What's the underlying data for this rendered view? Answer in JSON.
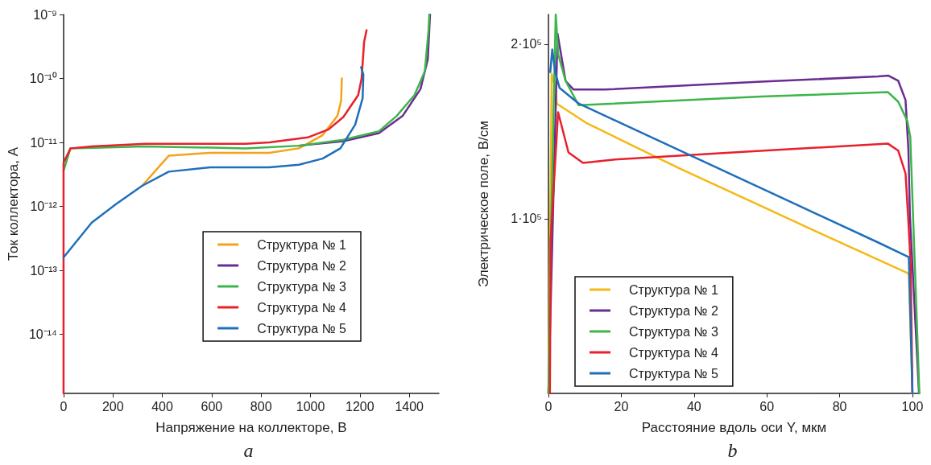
{
  "chart_data": [
    {
      "type": "line",
      "xlabel": "Напряжение на коллекторе, В",
      "ylabel": "Ток коллектора, А",
      "annotations": [
        "a"
      ],
      "log": "y",
      "xlim": [
        0,
        1520
      ],
      "xticks": [
        0,
        200,
        400,
        600,
        800,
        1000,
        1200,
        1400
      ],
      "ylim": [
        1.2e-15,
        1e-09
      ],
      "yticks": [
        {
          "value": 1e-14,
          "label": "10⁻¹⁴"
        },
        {
          "value": 1e-13,
          "label": "10⁻¹³"
        },
        {
          "value": 1e-12,
          "label": "10⁻¹²"
        },
        {
          "value": 1e-11,
          "label": "10⁻¹¹"
        },
        {
          "value": 1e-10,
          "label": "10⁻¹⁰"
        },
        {
          "value": 1e-09,
          "label": "10⁻⁹"
        }
      ],
      "legend": "right",
      "grid": false,
      "marker": "none",
      "line_style": "solid",
      "series": [
        {
          "name": "Структура № 1",
          "color": "#f7a11a",
          "x": [
            318,
            426,
            594,
            833,
            953,
            1049,
            1109,
            1124,
            1127
          ],
          "values": [
            2.1e-12,
            6.2e-12,
            6.9e-12,
            6.9e-12,
            8.1e-12,
            1.3e-11,
            2.6e-11,
            4.5e-11,
            1e-10
          ]
        },
        {
          "name": "Структура № 2",
          "color": "#6a2c91",
          "x": [
            953,
            1133,
            1277,
            1373,
            1445,
            1475,
            1484
          ],
          "values": [
            8.9e-12,
            1.05e-11,
            1.4e-11,
            2.6e-11,
            6.8e-11,
            2e-10,
            1e-09
          ]
        },
        {
          "name": "Структура № 3",
          "color": "#3cb54a",
          "x": [
            0,
            28,
            330,
            737,
            953,
            1133,
            1277,
            1349,
            1421,
            1463,
            1478,
            1481
          ],
          "values": [
            3.6e-12,
            8.1e-12,
            8.7e-12,
            8.1e-12,
            8.9e-12,
            1.1e-11,
            1.5e-11,
            2.6e-11,
            5.5e-11,
            1.3e-10,
            5.7e-10,
            1e-09
          ]
        },
        {
          "name": "Структура № 4",
          "color": "#e8202a",
          "x": [
            0,
            0,
            28,
            114,
            330,
            737,
            833,
            989,
            1073,
            1133,
            1193,
            1207,
            1217,
            1227
          ],
          "values": [
            1.2e-15,
            4.8e-12,
            8.1e-12,
            8.7e-12,
            9.5e-12,
            9.5e-12,
            1e-11,
            1.2e-11,
            1.6e-11,
            2.5e-11,
            5.5e-11,
            1e-10,
            3.7e-10,
            5.7e-10
          ]
        },
        {
          "name": "Структура № 5",
          "color": "#1f6fba",
          "x": [
            0,
            114,
            210,
            318,
            426,
            594,
            833,
            953,
            1049,
            1121,
            1181,
            1211,
            1214,
            1205
          ],
          "values": [
            1.6e-13,
            5.6e-13,
            1.07e-12,
            2.1e-12,
            3.5e-12,
            4.1e-12,
            4.1e-12,
            4.5e-12,
            5.6e-12,
            8.1e-12,
            1.9e-11,
            4.9e-11,
            1.15e-10,
            1.5e-10
          ]
        }
      ]
    },
    {
      "type": "line",
      "xlabel": "Расстояние вдоль оси Y, мкм",
      "ylabel": "Электрическое поле, В/см",
      "annotations": [
        "b"
      ],
      "xlim": [
        0,
        102
      ],
      "xticks": [
        0,
        20,
        40,
        60,
        80,
        100
      ],
      "ylim": [
        0,
        217000
      ],
      "yticks": [
        {
          "value": 100000,
          "label": "1·10⁵"
        },
        {
          "value": 200000,
          "label": "2·10⁵"
        }
      ],
      "legend": "bottom left",
      "grid": false,
      "marker": "none",
      "line_style": "solid",
      "series": [
        {
          "name": "Структура № 1",
          "color": "#f5b815",
          "x": [
            0,
            0.9,
            2.1,
            2.25,
            10.3,
            19.1,
            35.9,
            80.9,
            99.0,
            100
          ],
          "values": [
            0,
            183000,
            173000,
            166000,
            155000,
            146000,
            129000,
            85700,
            68600,
            0
          ]
        },
        {
          "name": "Структура № 2",
          "color": "#6a2c91",
          "x": [
            0,
            2.5,
            4.7,
            6.9,
            15.5,
            58.4,
            90.5,
            93.3,
            96.1,
            98.1,
            98.9,
            99.3,
            101.8
          ],
          "values": [
            0,
            206000,
            179000,
            174000,
            174000,
            178500,
            181500,
            182000,
            179000,
            168000,
            139000,
            102000,
            0
          ]
        },
        {
          "name": "Структура № 3",
          "color": "#3cb54a",
          "x": [
            0,
            0.65,
            2.0,
            2.7,
            4.7,
            8.3,
            58.4,
            93.3,
            96.1,
            98.6,
            99.4,
            101.9
          ],
          "values": [
            0,
            88000,
            217000,
            194000,
            179000,
            165000,
            170000,
            172500,
            167000,
            156000,
            147000,
            0
          ]
        },
        {
          "name": "Структура № 4",
          "color": "#e8202a",
          "x": [
            0.4,
            0.6,
            2.65,
            5.5,
            9.5,
            18.3,
            54.4,
            93.3,
            96.1,
            98.1,
            98.9,
            99.5,
            100
          ],
          "values": [
            0,
            88000,
            161000,
            138000,
            132000,
            134000,
            138500,
            143000,
            139000,
            126000,
            98000,
            74000,
            0
          ]
        },
        {
          "name": "Структура № 5",
          "color": "#1f6fba",
          "x": [
            0.5,
            1.05,
            1.85,
            3.05,
            8.3,
            90.5,
            99.0,
            100
          ],
          "values": [
            184000,
            197000,
            184000,
            175000,
            166000,
            86500,
            78000,
            0
          ]
        }
      ]
    }
  ]
}
